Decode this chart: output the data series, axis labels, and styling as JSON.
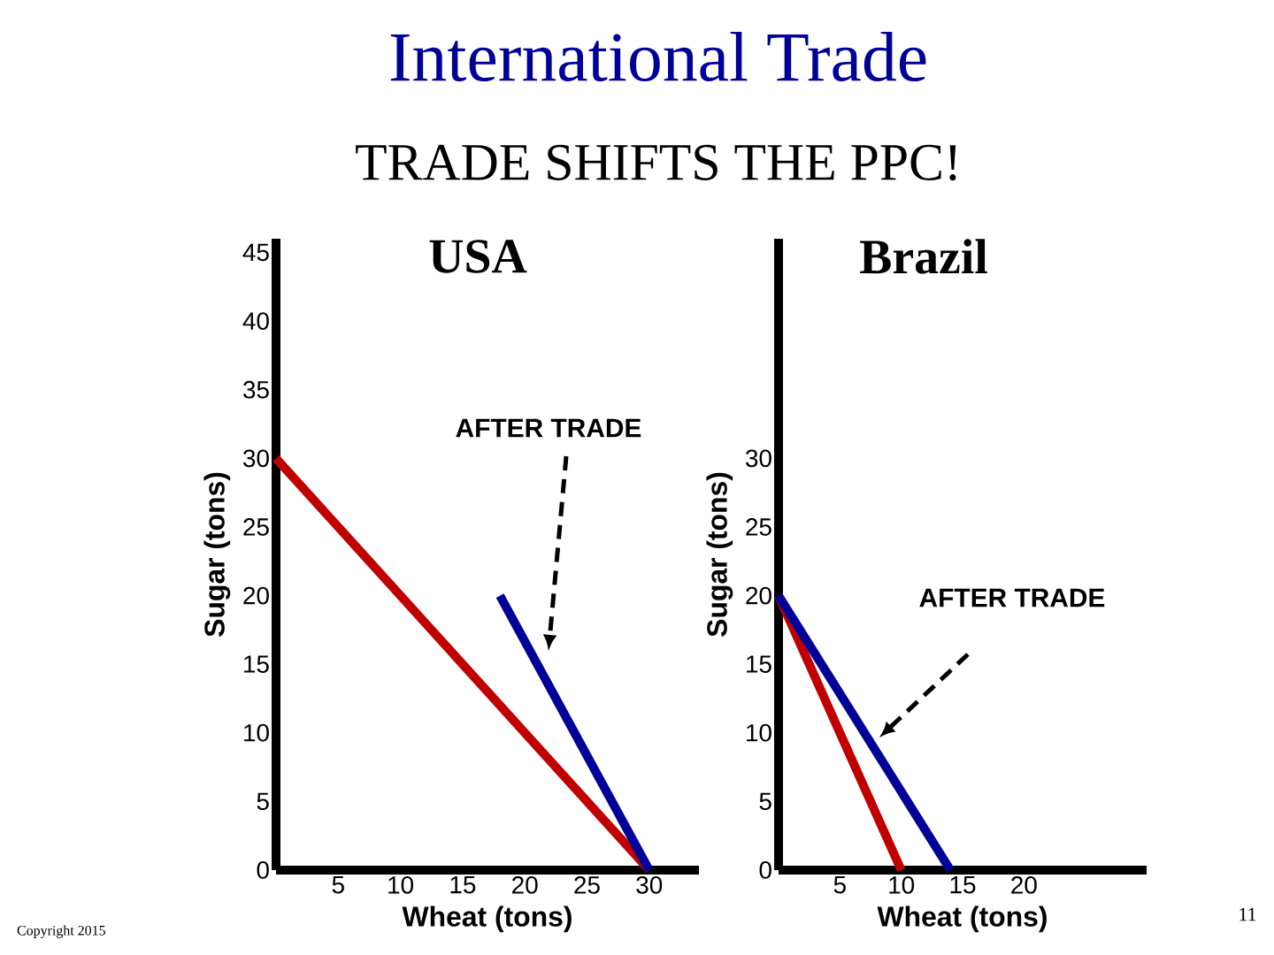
{
  "chart_data": [
    {
      "type": "line",
      "title": "USA",
      "xlabel": "Wheat (tons)",
      "ylabel": "Sugar (tons)",
      "xlim": [
        0,
        34
      ],
      "ylim": [
        0,
        46
      ],
      "xticks": [
        5,
        10,
        15,
        20,
        25,
        30
      ],
      "yticks": [
        0,
        5,
        10,
        15,
        20,
        25,
        30,
        35,
        40,
        45
      ],
      "series": [
        {
          "color": "#c00000",
          "x": [
            0,
            30
          ],
          "values": [
            30,
            0
          ]
        },
        {
          "color": "#000099",
          "x": [
            18,
            30
          ],
          "values": [
            20,
            0
          ]
        }
      ],
      "annotations": [
        "International Trade",
        "TRADE SHIFTS THE PPC!",
        "AFTER TRADE",
        "Copyright 2015",
        "11"
      ]
    },
    {
      "type": "line",
      "title": "Brazil",
      "xlabel": "Wheat (tons)",
      "ylabel": "Sugar (tons)",
      "xlim": [
        0,
        30
      ],
      "ylim": [
        0,
        46
      ],
      "xticks": [
        5,
        10,
        15,
        20
      ],
      "yticks": [
        0,
        5,
        10,
        15,
        20,
        25,
        30
      ],
      "series": [
        {
          "color": "#c00000",
          "x": [
            0,
            10
          ],
          "values": [
            20,
            0
          ]
        },
        {
          "color": "#000099",
          "x": [
            0,
            14
          ],
          "values": [
            20,
            0
          ]
        }
      ],
      "annotations": [
        "AFTER TRADE"
      ]
    }
  ]
}
